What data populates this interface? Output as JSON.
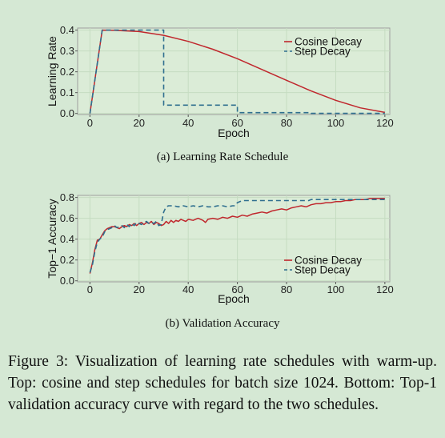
{
  "colors": {
    "cosine": "#c0272d",
    "step": "#2f6f8f",
    "panel_bg": "#dbecd7",
    "grid": "#c5dcc1",
    "frame": "#9e9e9e"
  },
  "subcaptions": {
    "top": "(a) Learning Rate Schedule",
    "bottom": "(b) Validation Accuracy"
  },
  "caption": "Figure 3:  Visualization of learning rate schedules with warm-up.  Top:  cosine and step schedules for batch size 1024. Bottom: Top-1 validation accuracy curve with regard to the two schedules.",
  "chart_data": [
    {
      "type": "line",
      "xlabel": "Epoch",
      "ylabel": "Learning Rate",
      "xlim": [
        -5,
        122
      ],
      "ylim": [
        -0.005,
        0.41
      ],
      "xticks": [
        "0",
        "20",
        "40",
        "60",
        "80",
        "100",
        "120"
      ],
      "yticks": [
        "0.0",
        "0.1",
        "0.2",
        "0.3",
        "0.4"
      ],
      "legend_position": "top-right",
      "grid": true,
      "series": [
        {
          "name": "Cosine Decay",
          "style": "solid",
          "x": [
            0,
            5,
            10,
            20,
            30,
            40,
            50,
            60,
            70,
            80,
            90,
            100,
            110,
            120
          ],
          "y": [
            0.0,
            0.4,
            0.399,
            0.393,
            0.375,
            0.346,
            0.308,
            0.263,
            0.211,
            0.159,
            0.108,
            0.063,
            0.027,
            0.005
          ]
        },
        {
          "name": "Step Decay",
          "style": "dashed",
          "x": [
            0,
            5,
            30,
            30,
            60,
            60,
            90,
            90,
            120
          ],
          "y": [
            0.0,
            0.4,
            0.4,
            0.04,
            0.04,
            0.004,
            0.004,
            0.0004,
            0.0004
          ]
        }
      ]
    },
    {
      "type": "line",
      "xlabel": "Epoch",
      "ylabel": "Top−1 Accuracy",
      "xlim": [
        -5,
        122
      ],
      "ylim": [
        -0.01,
        0.82
      ],
      "xticks": [
        "0",
        "20",
        "40",
        "60",
        "80",
        "100",
        "120"
      ],
      "yticks": [
        "0.0",
        "0.2",
        "0.4",
        "0.6",
        "0.8"
      ],
      "legend_position": "bottom-right",
      "grid": true,
      "series": [
        {
          "name": "Cosine Decay",
          "style": "solid",
          "x": [
            0,
            1,
            2,
            3,
            4,
            5,
            6,
            7,
            8,
            9,
            10,
            11,
            12,
            13,
            14,
            15,
            16,
            17,
            18,
            19,
            20,
            21,
            22,
            23,
            24,
            25,
            26,
            27,
            28,
            29,
            30,
            31,
            32,
            33,
            34,
            35,
            36,
            37,
            38,
            39,
            40,
            42,
            44,
            46,
            47,
            48,
            50,
            52,
            54,
            56,
            58,
            60,
            62,
            64,
            66,
            68,
            70,
            72,
            74,
            76,
            78,
            80,
            82,
            84,
            86,
            88,
            90,
            92,
            94,
            96,
            98,
            100,
            102,
            104,
            106,
            108,
            110,
            112,
            114,
            116,
            118,
            120
          ],
          "y": [
            0.07,
            0.17,
            0.3,
            0.39,
            0.4,
            0.44,
            0.48,
            0.5,
            0.51,
            0.52,
            0.52,
            0.51,
            0.5,
            0.52,
            0.53,
            0.52,
            0.54,
            0.53,
            0.55,
            0.53,
            0.55,
            0.56,
            0.54,
            0.56,
            0.55,
            0.57,
            0.54,
            0.56,
            0.55,
            0.53,
            0.54,
            0.57,
            0.55,
            0.58,
            0.56,
            0.58,
            0.57,
            0.59,
            0.58,
            0.57,
            0.59,
            0.58,
            0.6,
            0.58,
            0.56,
            0.59,
            0.6,
            0.59,
            0.61,
            0.6,
            0.62,
            0.61,
            0.63,
            0.62,
            0.64,
            0.65,
            0.66,
            0.65,
            0.67,
            0.68,
            0.69,
            0.68,
            0.7,
            0.71,
            0.72,
            0.71,
            0.73,
            0.74,
            0.74,
            0.75,
            0.75,
            0.76,
            0.76,
            0.77,
            0.77,
            0.78,
            0.78,
            0.78,
            0.79,
            0.79,
            0.79,
            0.79
          ]
        },
        {
          "name": "Step Decay",
          "style": "dashed",
          "x": [
            0,
            1,
            2,
            3,
            4,
            5,
            6,
            7,
            8,
            9,
            10,
            11,
            12,
            13,
            14,
            15,
            16,
            17,
            18,
            19,
            20,
            21,
            22,
            23,
            24,
            25,
            26,
            27,
            28,
            29,
            30,
            31,
            32,
            34,
            36,
            38,
            40,
            42,
            44,
            46,
            48,
            50,
            52,
            54,
            56,
            58,
            59,
            60,
            61,
            62,
            64,
            66,
            68,
            70,
            72,
            74,
            76,
            78,
            80,
            82,
            84,
            86,
            88,
            89,
            90,
            91,
            92,
            95,
            100,
            105,
            110,
            115,
            120
          ],
          "y": [
            0.08,
            0.15,
            0.28,
            0.37,
            0.4,
            0.42,
            0.47,
            0.49,
            0.5,
            0.51,
            0.53,
            0.51,
            0.52,
            0.53,
            0.51,
            0.54,
            0.52,
            0.55,
            0.53,
            0.56,
            0.55,
            0.54,
            0.56,
            0.57,
            0.55,
            0.56,
            0.55,
            0.57,
            0.53,
            0.54,
            0.66,
            0.71,
            0.72,
            0.72,
            0.71,
            0.72,
            0.71,
            0.72,
            0.71,
            0.72,
            0.71,
            0.71,
            0.72,
            0.72,
            0.71,
            0.72,
            0.72,
            0.75,
            0.76,
            0.77,
            0.77,
            0.77,
            0.77,
            0.77,
            0.77,
            0.77,
            0.77,
            0.77,
            0.77,
            0.77,
            0.77,
            0.77,
            0.77,
            0.77,
            0.78,
            0.78,
            0.78,
            0.78,
            0.78,
            0.78,
            0.78,
            0.78,
            0.78
          ]
        }
      ]
    }
  ]
}
